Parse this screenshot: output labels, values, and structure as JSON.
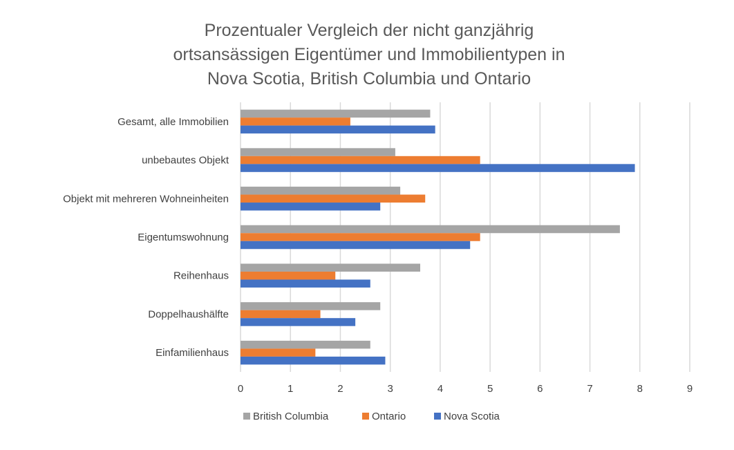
{
  "chart_data": {
    "type": "bar",
    "orientation": "horizontal",
    "title_lines": [
      "Prozentualer Vergleich der nicht ganzjährig",
      "ortsansässigen Eigentümer und Immobilientypen in",
      "Nova Scotia, British Columbia und Ontario"
    ],
    "categories": [
      "Gesamt, alle Immobilien",
      "unbebautes Objekt",
      "Objekt mit mehreren Wohneinheiten",
      "Eigentumswohnung",
      "Reihenhaus",
      "Doppelhaushälfte",
      "Einfamilienhaus"
    ],
    "series": [
      {
        "name": "British Columbia",
        "color": "#a5a5a5",
        "values": [
          3.8,
          3.1,
          3.2,
          7.6,
          3.6,
          2.8,
          2.6
        ]
      },
      {
        "name": "Ontario",
        "color": "#ed7d31",
        "values": [
          2.2,
          4.8,
          3.7,
          4.8,
          1.9,
          1.6,
          1.5
        ]
      },
      {
        "name": "Nova Scotia",
        "color": "#4472c4",
        "values": [
          3.9,
          7.9,
          2.8,
          4.6,
          2.6,
          2.3,
          2.9
        ]
      }
    ],
    "xlim": [
      0,
      9
    ],
    "xticks": [
      "0",
      "1",
      "2",
      "3",
      "4",
      "5",
      "6",
      "7",
      "8",
      "9"
    ],
    "grid": true,
    "legend_position": "bottom"
  }
}
